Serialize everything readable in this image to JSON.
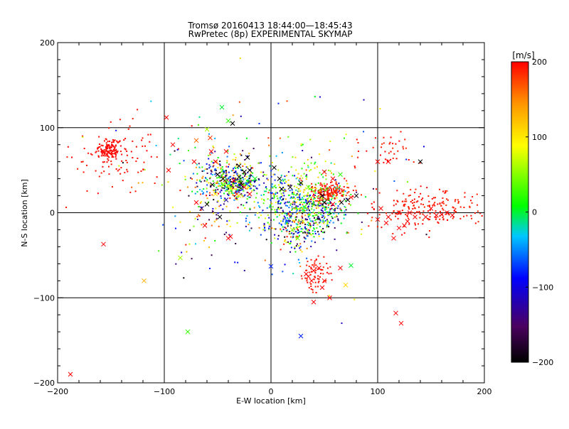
{
  "chart_data": {
    "type": "scatter",
    "title": "Tromsø 20160413 18:44:00—18:45:43",
    "subtitle": "RwPretec (8p) EXPERIMENTAL SKYMAP",
    "xlabel": "E-W location [km]",
    "ylabel": "N-S location [km]",
    "xlim": [
      -200,
      200
    ],
    "ylim": [
      -200,
      200
    ],
    "xticks": [
      -200,
      -100,
      0,
      100,
      200
    ],
    "yticks": [
      -200,
      -100,
      0,
      100,
      200
    ],
    "grid": true,
    "colorbar": {
      "label": "[m/s]",
      "min": -200,
      "max": 200,
      "ticks": [
        200,
        100,
        0,
        -100,
        -200
      ],
      "colormap": [
        "#000000",
        "#4b0060",
        "#0000ff",
        "#00c8ff",
        "#00ff00",
        "#ffff00",
        "#ff9600",
        "#ff0000"
      ]
    },
    "series": [
      {
        "marker": "x",
        "points": [
          [
            -188,
            -190,
            200
          ],
          [
            -157,
            -37,
            200
          ],
          [
            -119,
            -80,
            130
          ],
          [
            -98,
            112,
            200
          ],
          [
            -92,
            80,
            200
          ],
          [
            -96,
            50,
            200
          ],
          [
            -78,
            -140,
            25
          ],
          [
            -85,
            -53,
            60
          ],
          [
            -72,
            60,
            200
          ],
          [
            -60,
            98,
            60
          ],
          [
            -57,
            88,
            180
          ],
          [
            -56,
            72,
            200
          ],
          [
            -70,
            85,
            160
          ],
          [
            -52,
            60,
            200
          ],
          [
            -46,
            124,
            0
          ],
          [
            -40,
            108,
            20
          ],
          [
            -36,
            105,
            -200
          ],
          [
            -42,
            72,
            200
          ],
          [
            -50,
            45,
            -200
          ],
          [
            -45,
            40,
            -200
          ],
          [
            -35,
            38,
            200
          ],
          [
            -30,
            42,
            -200
          ],
          [
            -28,
            35,
            -200
          ],
          [
            -25,
            48,
            -200
          ],
          [
            -38,
            28,
            80
          ],
          [
            -32,
            22,
            200
          ],
          [
            -42,
            15,
            -120
          ],
          [
            -55,
            33,
            -200
          ],
          [
            -48,
            -5,
            -200
          ],
          [
            -30,
            55,
            -200
          ],
          [
            -20,
            50,
            -200
          ],
          [
            -25,
            30,
            200
          ],
          [
            -38,
            -28,
            200
          ],
          [
            -60,
            10,
            -200
          ],
          [
            -65,
            5,
            -160
          ],
          [
            -70,
            12,
            200
          ],
          [
            -52,
            22,
            100
          ],
          [
            -22,
            65,
            -200
          ],
          [
            -62,
            -15,
            200
          ],
          [
            3,
            53,
            -200
          ],
          [
            8,
            40,
            -200
          ],
          [
            10,
            28,
            -200
          ],
          [
            18,
            30,
            -200
          ],
          [
            28,
            35,
            -200
          ],
          [
            50,
            48,
            200
          ],
          [
            58,
            40,
            200
          ],
          [
            65,
            45,
            20
          ],
          [
            72,
            15,
            -200
          ],
          [
            75,
            18,
            200
          ],
          [
            55,
            22,
            200
          ],
          [
            48,
            20,
            -200
          ],
          [
            50,
            12,
            -200
          ],
          [
            58,
            10,
            200
          ],
          [
            66,
            12,
            -200
          ],
          [
            80,
            20,
            -200
          ],
          [
            100,
            60,
            200
          ],
          [
            110,
            60,
            200
          ],
          [
            140,
            60,
            -200
          ],
          [
            103,
            5,
            200
          ],
          [
            110,
            -5,
            200
          ],
          [
            120,
            0,
            200
          ],
          [
            130,
            0,
            200
          ],
          [
            128,
            -10,
            200
          ],
          [
            135,
            -5,
            200
          ],
          [
            145,
            -5,
            200
          ],
          [
            150,
            5,
            200
          ],
          [
            155,
            -3,
            200
          ],
          [
            160,
            -2,
            200
          ],
          [
            165,
            0,
            200
          ],
          [
            170,
            -3,
            200
          ],
          [
            120,
            -18,
            200
          ],
          [
            125,
            -15,
            200
          ],
          [
            115,
            -30,
            200
          ],
          [
            108,
            -12,
            200
          ],
          [
            100,
            -8,
            200
          ],
          [
            40,
            -68,
            200
          ],
          [
            35,
            -75,
            200
          ],
          [
            38,
            -80,
            200
          ],
          [
            33,
            -72,
            200
          ],
          [
            45,
            -65,
            200
          ],
          [
            50,
            -80,
            200
          ],
          [
            48,
            -88,
            200
          ],
          [
            40,
            -105,
            200
          ],
          [
            55,
            -100,
            200
          ],
          [
            -40,
            -30,
            200
          ],
          [
            70,
            -85,
            110
          ],
          [
            75,
            -62,
            0
          ],
          [
            65,
            -65,
            200
          ],
          [
            28,
            -145,
            -80
          ],
          [
            0,
            -63,
            -80
          ],
          [
            117,
            -118,
            200
          ],
          [
            122,
            -130,
            200
          ],
          [
            20,
            -20,
            60
          ],
          [
            25,
            -30,
            40
          ],
          [
            15,
            -10,
            -60
          ],
          [
            30,
            -10,
            80
          ],
          [
            35,
            30,
            40
          ],
          [
            -30,
            20,
            100
          ],
          [
            -15,
            40,
            10
          ],
          [
            -20,
            22,
            200
          ]
        ]
      }
    ],
    "clusters": [
      {
        "cx": -152,
        "cy": 74,
        "sx": 6,
        "sy": 6,
        "n": 130,
        "vmin": 195,
        "vmax": 200
      },
      {
        "cx": -145,
        "cy": 70,
        "sx": 22,
        "sy": 22,
        "n": 90,
        "vmin": 190,
        "vmax": 200
      },
      {
        "cx": -40,
        "cy": 38,
        "sx": 14,
        "sy": 10,
        "n": 280,
        "vmin": -200,
        "vmax": 200
      },
      {
        "cx": -30,
        "cy": 32,
        "sx": 8,
        "sy": 6,
        "n": 120,
        "vmin": -200,
        "vmax": 120
      },
      {
        "cx": -50,
        "cy": 20,
        "sx": 22,
        "sy": 35,
        "n": 150,
        "vmin": -200,
        "vmax": 200
      },
      {
        "cx": 10,
        "cy": 10,
        "sx": 14,
        "sy": 18,
        "n": 220,
        "vmin": -120,
        "vmax": 100
      },
      {
        "cx": 25,
        "cy": -15,
        "sx": 12,
        "sy": 18,
        "n": 220,
        "vmin": -200,
        "vmax": 200
      },
      {
        "cx": 45,
        "cy": 5,
        "sx": 14,
        "sy": 14,
        "n": 230,
        "vmin": -200,
        "vmax": 80
      },
      {
        "cx": 55,
        "cy": 25,
        "sx": 10,
        "sy": 6,
        "n": 170,
        "vmin": 175,
        "vmax": 200
      },
      {
        "cx": 40,
        "cy": 25,
        "sx": 12,
        "sy": 18,
        "n": 120,
        "vmin": -20,
        "vmax": 120
      },
      {
        "cx": 145,
        "cy": 5,
        "sx": 25,
        "sy": 12,
        "n": 200,
        "vmin": 185,
        "vmax": 200
      },
      {
        "cx": 42,
        "cy": -72,
        "sx": 7,
        "sy": 12,
        "n": 70,
        "vmin": 185,
        "vmax": 200
      },
      {
        "cx": 0,
        "cy": 40,
        "sx": 60,
        "sy": 55,
        "n": 150,
        "vmin": -200,
        "vmax": 200
      },
      {
        "cx": 105,
        "cy": 75,
        "sx": 15,
        "sy": 12,
        "n": 40,
        "vmin": 185,
        "vmax": 200
      }
    ]
  }
}
